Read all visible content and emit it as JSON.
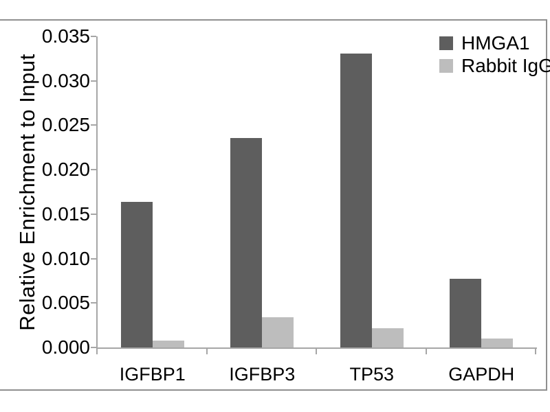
{
  "chart_data": {
    "type": "bar",
    "title": "",
    "xlabel": "",
    "ylabel": "Relative Enrichment to Input",
    "categories": [
      "IGFBP1",
      "IGFBP3",
      "TP53",
      "GAPDH"
    ],
    "series": [
      {
        "name": "HMGA1",
        "color": "#5e5e5e",
        "values": [
          0.0164,
          0.0236,
          0.0331,
          0.0077
        ]
      },
      {
        "name": "Rabbit IgG",
        "color": "#bdbdbd",
        "values": [
          0.0008,
          0.0034,
          0.0022,
          0.001
        ]
      }
    ],
    "ylim": [
      0,
      0.035
    ],
    "ytick_step": 0.005,
    "yticks": [
      "0.000",
      "0.005",
      "0.010",
      "0.015",
      "0.020",
      "0.025",
      "0.030",
      "0.035"
    ],
    "grid": false,
    "legend_position": "top-right"
  },
  "colors": {
    "background": "#ffffff",
    "axis": "#a6a6a6",
    "frame": "#8f8f8f",
    "text": "#000000"
  }
}
